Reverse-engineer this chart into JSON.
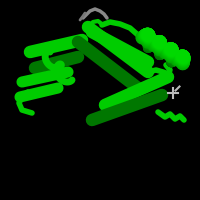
{
  "background_color": "#000000",
  "figure_size": [
    2.0,
    2.0
  ],
  "dpi": 100,
  "green_color": "#00CC00",
  "green_dark": "#007700",
  "gray_color": "#999999"
}
